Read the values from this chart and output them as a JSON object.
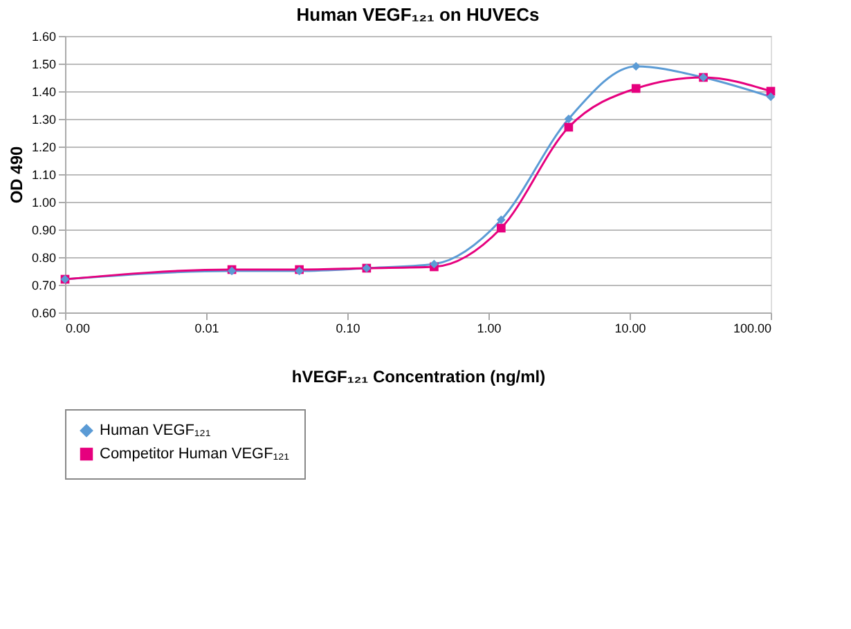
{
  "chart_data": {
    "type": "line",
    "title": "Human VEGF₁₂₁ on HUVECs",
    "xlabel": "hVEGF₁₂₁ Concentration (ng/ml)",
    "ylabel": "OD 490",
    "x": [
      0.001,
      0.0152,
      0.0457,
      0.137,
      0.412,
      1.23,
      3.7,
      11.1,
      33.3,
      100
    ],
    "series": [
      {
        "name": "Human VEGF₁₂₁",
        "color": "#5b9bd5",
        "marker": "diamond",
        "values": [
          0.72,
          0.75,
          0.75,
          0.76,
          0.775,
          0.935,
          1.3,
          1.49,
          1.45,
          1.38
        ]
      },
      {
        "name": "Competitor Human VEGF₁₂₁",
        "color": "#e6007e",
        "marker": "square",
        "values": [
          0.72,
          0.755,
          0.755,
          0.76,
          0.765,
          0.905,
          1.27,
          1.41,
          1.45,
          1.4
        ]
      }
    ],
    "log": "x",
    "xlim": [
      0.001,
      100
    ],
    "xticks": [
      {
        "value": 0.001,
        "label": "0.00"
      },
      0.01,
      {
        "value": 0.1,
        "label": "0.10"
      },
      {
        "value": 1,
        "label": "1.00"
      },
      {
        "value": 10,
        "label": "10.00"
      },
      {
        "value": 100,
        "label": "100.00"
      }
    ],
    "ylim": [
      0.6,
      1.6
    ],
    "yticks": [
      {
        "value": 0.6,
        "label": "0.60"
      },
      {
        "value": 0.7,
        "label": "0.70"
      },
      {
        "value": 0.8,
        "label": "0.80"
      },
      {
        "value": 0.9,
        "label": "0.90"
      },
      {
        "value": 1.0,
        "label": "1.00"
      },
      {
        "value": 1.1,
        "label": "1.10"
      },
      {
        "value": 1.2,
        "label": "1.20"
      },
      {
        "value": 1.3,
        "label": "1.30"
      },
      {
        "value": 1.4,
        "label": "1.40"
      },
      {
        "value": 1.5,
        "label": "1.50"
      },
      {
        "value": 1.6,
        "label": "1.60"
      }
    ],
    "grid": "y",
    "legend": "bottom",
    "line_style": "solid"
  }
}
